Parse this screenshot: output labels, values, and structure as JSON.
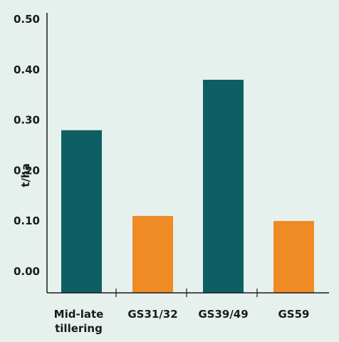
{
  "chart_data": {
    "type": "bar",
    "categories": [
      [
        "Mid-late",
        "tillering"
      ],
      [
        "GS31/32"
      ],
      [
        "GS39/49"
      ],
      [
        "GS59"
      ]
    ],
    "values": [
      0.28,
      0.11,
      0.38,
      0.1
    ],
    "bar_colors": [
      "#0d5f63",
      "#f08a24",
      "#0d5f63",
      "#f08a24"
    ],
    "ylabel": "t/ha",
    "yticks": [
      "0.00",
      "0.10",
      "0.20",
      "0.30",
      "0.40",
      "0.50"
    ],
    "ylim": [
      0,
      0.5
    ],
    "grid": false,
    "legend": "none"
  }
}
